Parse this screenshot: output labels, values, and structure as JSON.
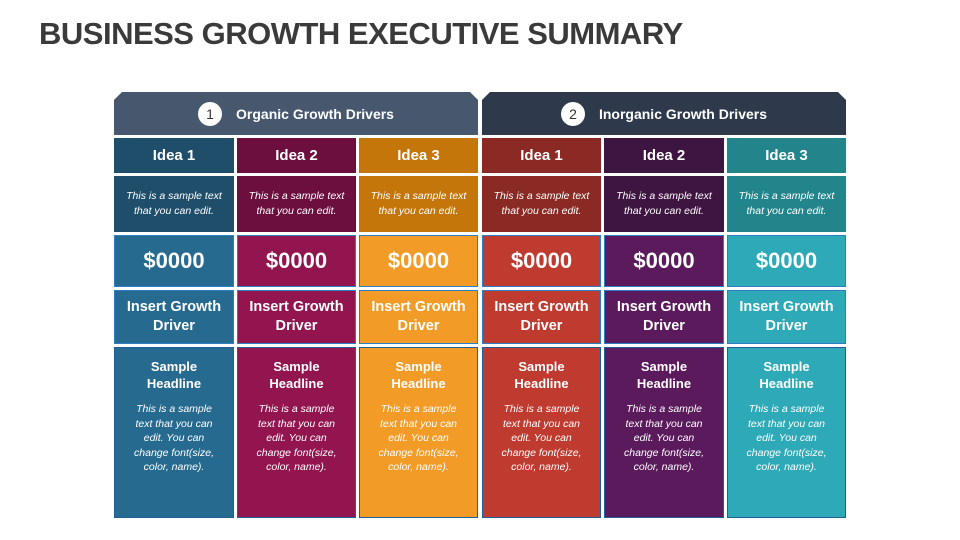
{
  "title": "BUSINESS GROWTH EXECUTIVE SUMMARY",
  "groups": [
    {
      "number": "1",
      "label": "Organic Growth Drivers",
      "color": "#46576e"
    },
    {
      "number": "2",
      "label": "Inorganic Growth Drivers",
      "color": "#2e3a4c"
    }
  ],
  "columns": [
    {
      "idea": "Idea 1",
      "desc": "This is a sample text that you can edit.",
      "value": "$0000",
      "driver": "Insert Growth Driver",
      "headline": "Sample Headline",
      "text": "This is a sample text that you can edit. You can change font(size, color, name).",
      "dark": "#1f4e6b",
      "light": "#266a90"
    },
    {
      "idea": "Idea 2",
      "desc": "This is a sample text that you can edit.",
      "value": "$0000",
      "driver": "Insert Growth Driver",
      "headline": "Sample Headline",
      "text": "This is a sample text that you can edit. You can change font(size, color, name).",
      "dark": "#6d0f3e",
      "light": "#92154f"
    },
    {
      "idea": "Idea 3",
      "desc": "This is a sample text that you can edit.",
      "value": "$0000",
      "driver": "Insert Growth Driver",
      "headline": "Sample Headline",
      "text": "This is a sample text that you can edit. You can change font(size, color, name).",
      "dark": "#c5760b",
      "light": "#f29b27"
    },
    {
      "idea": "Idea 1",
      "desc": "This is a sample text that you can edit.",
      "value": "$0000",
      "driver": "Insert Growth Driver",
      "headline": "Sample Headline",
      "text": "This is a sample text that you can edit. You can change font(size, color, name).",
      "dark": "#8b2a24",
      "light": "#bf3a2f"
    },
    {
      "idea": "Idea 2",
      "desc": "This is a sample text that you can edit.",
      "value": "$0000",
      "driver": "Insert Growth Driver",
      "headline": "Sample Headline",
      "text": "This is a sample text that you can edit. You can change font(size, color, name).",
      "dark": "#3e1441",
      "light": "#5a1a5c"
    },
    {
      "idea": "Idea 3",
      "desc": "This is a sample text that you can edit.",
      "value": "$0000",
      "driver": "Insert Growth Driver",
      "headline": "Sample Headline",
      "text": "This is a sample text that you can edit. You can change font(size, color, name).",
      "dark": "#23858c",
      "light": "#2ea9b7"
    }
  ]
}
